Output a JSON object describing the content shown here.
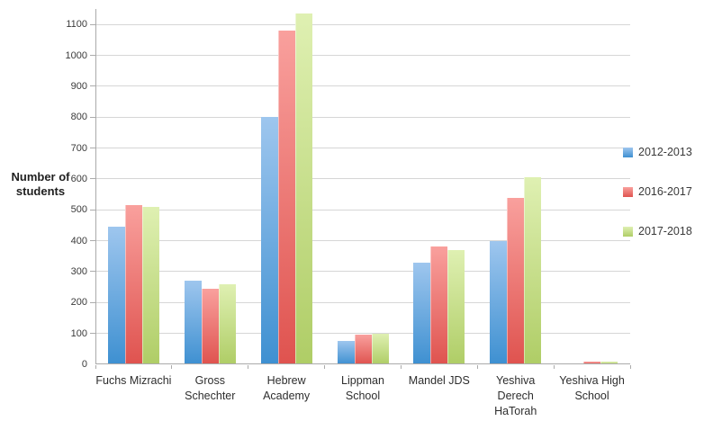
{
  "chart_data": {
    "type": "bar",
    "title": "",
    "xlabel": "",
    "ylabel": "Number of students",
    "categories": [
      "Fuchs Mizrachi",
      "Gross Schechter",
      "Hebrew Academy",
      "Lippman School",
      "Mandel JDS",
      "Yeshiva Derech HaTorah",
      "Yeshiva High School"
    ],
    "category_lines": [
      [
        "Fuchs Mizrachi"
      ],
      [
        "Gross",
        "Schechter"
      ],
      [
        "Hebrew",
        "Academy"
      ],
      [
        "Lippman",
        "School"
      ],
      [
        "Mandel JDS"
      ],
      [
        "Yeshiva",
        "Derech",
        "HaTorah"
      ],
      [
        "Yeshiva High",
        "School"
      ]
    ],
    "series": [
      {
        "name": "2012-2013",
        "color_top": "#9EC6EE",
        "color_bottom": "#3E90D1",
        "values": [
          445,
          270,
          800,
          75,
          330,
          400,
          0
        ]
      },
      {
        "name": "2016-2017",
        "color_top": "#F9A09D",
        "color_bottom": "#DF534F",
        "values": [
          515,
          245,
          1080,
          95,
          380,
          540,
          10
        ]
      },
      {
        "name": "2017-2018",
        "color_top": "#DFF0B2",
        "color_bottom": "#AFCD66",
        "values": [
          510,
          260,
          1135,
          100,
          370,
          605,
          10
        ]
      }
    ],
    "y_axis": {
      "min": 0,
      "max": 1150,
      "tick_interval": 100,
      "tick_labels": [
        "0",
        "100",
        "200",
        "300",
        "400",
        "500",
        "600",
        "700",
        "800",
        "900",
        "1000",
        "1100"
      ]
    },
    "grid": true,
    "legend_position": "right",
    "colors": {
      "axis": "#ABABAB",
      "gridline": "#D6D6D6",
      "text": "#3A3A3A",
      "background": "#FFFFFF"
    }
  }
}
